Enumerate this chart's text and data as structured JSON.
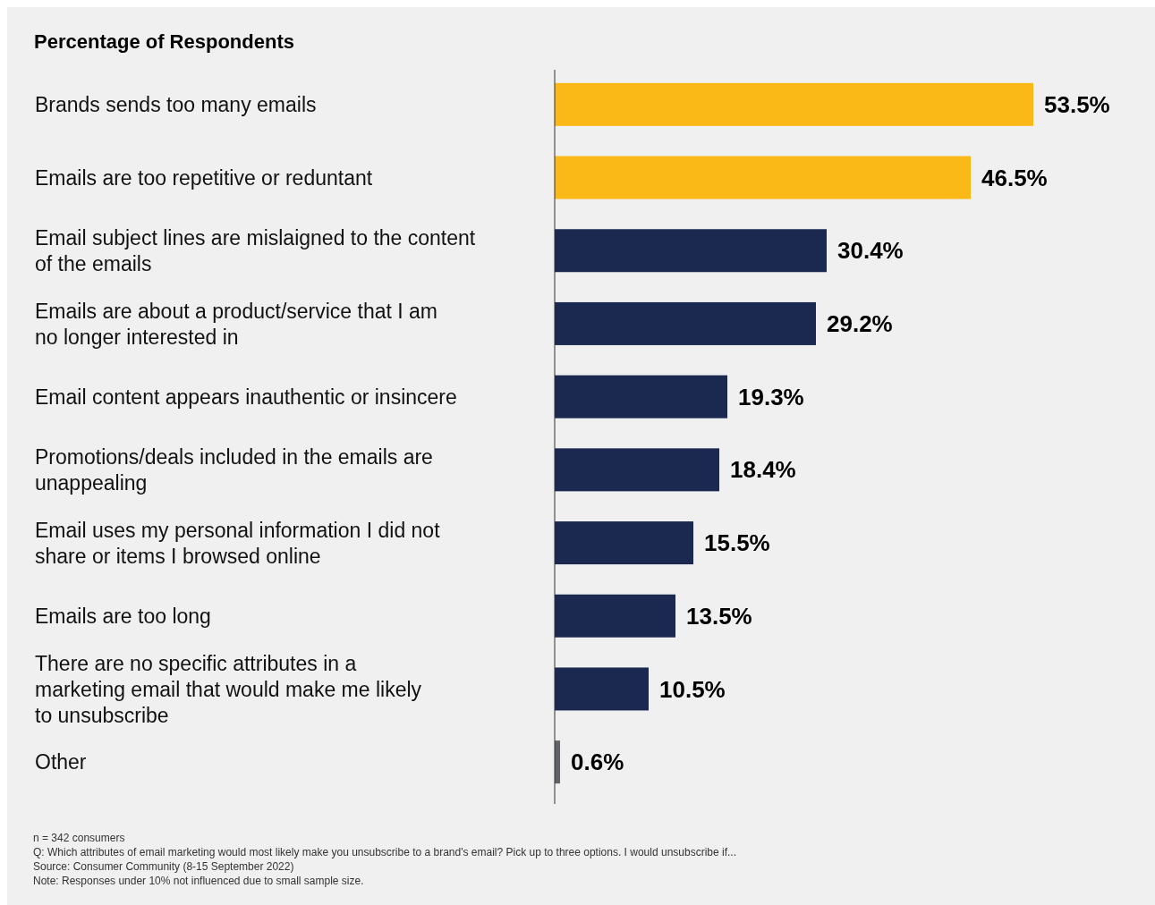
{
  "chart_data": {
    "type": "bar",
    "orientation": "horizontal",
    "title": "Percentage of Respondents",
    "categories": [
      "Brands sends too many emails",
      "Emails are too repetitive or reduntant",
      "Email subject lines are mislaigned to the content\nof the emails",
      "Emails are about a product/service that I am\nno longer interested in",
      "Email content appears inauthentic or insincere",
      "Promotions/deals included in the emails are\nunappealing",
      "Email uses my personal information I did not\nshare or items I browsed online",
      "Emails are too long",
      "There are no specific attributes in a\nmarketing email that would make me likely\nto unsubscribe",
      "Other"
    ],
    "values": [
      53.5,
      46.5,
      30.4,
      29.2,
      19.3,
      18.4,
      15.5,
      13.5,
      10.5,
      0.6
    ],
    "colors": [
      "#fbb918",
      "#fbb918",
      "#1b2951",
      "#1b2951",
      "#1b2951",
      "#1b2951",
      "#1b2951",
      "#1b2951",
      "#1b2951",
      "#5f6369"
    ],
    "value_labels": [
      "53.5%",
      "46.5%",
      "30.4%",
      "29.2%",
      "19.3%",
      "18.4%",
      "15.5%",
      "13.5%",
      "10.5%",
      "0.6%"
    ],
    "annotations": [
      "n = 342 consumers",
      "Q: Which attributes of email marketing would most likely make you unsubscribe to a brand's email? Pick up to three options. I would unsubscribe if...",
      "Source: Consumer Community (8-15 September 2022)",
      "Note: Responses under 10% not influenced due to small sample size."
    ]
  }
}
